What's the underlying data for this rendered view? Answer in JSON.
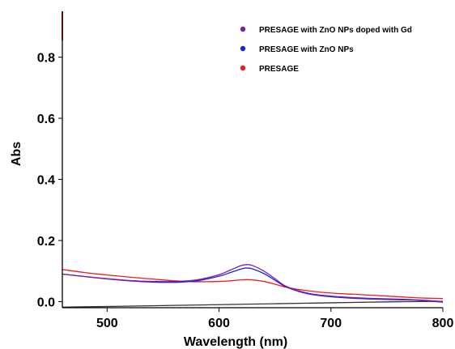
{
  "chart_data": {
    "type": "line",
    "title": "",
    "xlabel": "Wavelength (nm)",
    "ylabel": "Abs",
    "xlim": [
      460,
      800
    ],
    "ylim": [
      -0.02,
      0.95
    ],
    "xticks": [
      500,
      600,
      700,
      800
    ],
    "xtick_labels": [
      "500",
      "600",
      "700",
      "800"
    ],
    "yticks": [
      0.0,
      0.2,
      0.4,
      0.6,
      0.8
    ],
    "ytick_labels": [
      "0.0",
      "0.2",
      "0.4",
      "0.6",
      "0.8"
    ],
    "grid": false,
    "legend_position": "top-right",
    "series": [
      {
        "name": "PRESAGE with ZnO NPs doped with Gd",
        "color": "#7a1fa2",
        "x": [
          460,
          480,
          500,
          520,
          540,
          560,
          580,
          600,
          610,
          620,
          625,
          630,
          640,
          650,
          660,
          680,
          700,
          720,
          740,
          760,
          780,
          800
        ],
        "y": [
          0.09,
          0.082,
          0.075,
          0.069,
          0.066,
          0.066,
          0.071,
          0.088,
          0.103,
          0.118,
          0.121,
          0.118,
          0.1,
          0.075,
          0.05,
          0.027,
          0.018,
          0.013,
          0.01,
          0.008,
          0.005,
          0.0
        ]
      },
      {
        "name": "PRESAGE with ZnO NPs",
        "color": "#1a22e6",
        "x": [
          460,
          480,
          500,
          520,
          540,
          560,
          580,
          600,
          610,
          620,
          625,
          630,
          640,
          650,
          660,
          680,
          700,
          720,
          740,
          760,
          780,
          800
        ],
        "y": [
          0.09,
          0.082,
          0.074,
          0.068,
          0.064,
          0.063,
          0.068,
          0.083,
          0.095,
          0.107,
          0.11,
          0.107,
          0.092,
          0.07,
          0.048,
          0.025,
          0.016,
          0.011,
          0.008,
          0.006,
          0.004,
          -0.002
        ]
      },
      {
        "name": "PRESAGE",
        "color": "#ee1c1c",
        "x": [
          460,
          480,
          500,
          520,
          540,
          560,
          580,
          600,
          610,
          620,
          625,
          630,
          640,
          650,
          660,
          680,
          700,
          720,
          740,
          760,
          780,
          800
        ],
        "y": [
          0.105,
          0.095,
          0.087,
          0.08,
          0.074,
          0.068,
          0.065,
          0.066,
          0.068,
          0.071,
          0.072,
          0.071,
          0.066,
          0.057,
          0.047,
          0.035,
          0.028,
          0.024,
          0.02,
          0.016,
          0.012,
          0.01
        ]
      },
      {
        "name": "",
        "color": "#333333",
        "x": [
          460,
          500,
          550,
          600,
          650,
          700,
          750,
          800
        ],
        "y": [
          -0.018,
          -0.016,
          -0.013,
          -0.01,
          -0.007,
          -0.004,
          -0.001,
          0.001
        ]
      }
    ]
  }
}
